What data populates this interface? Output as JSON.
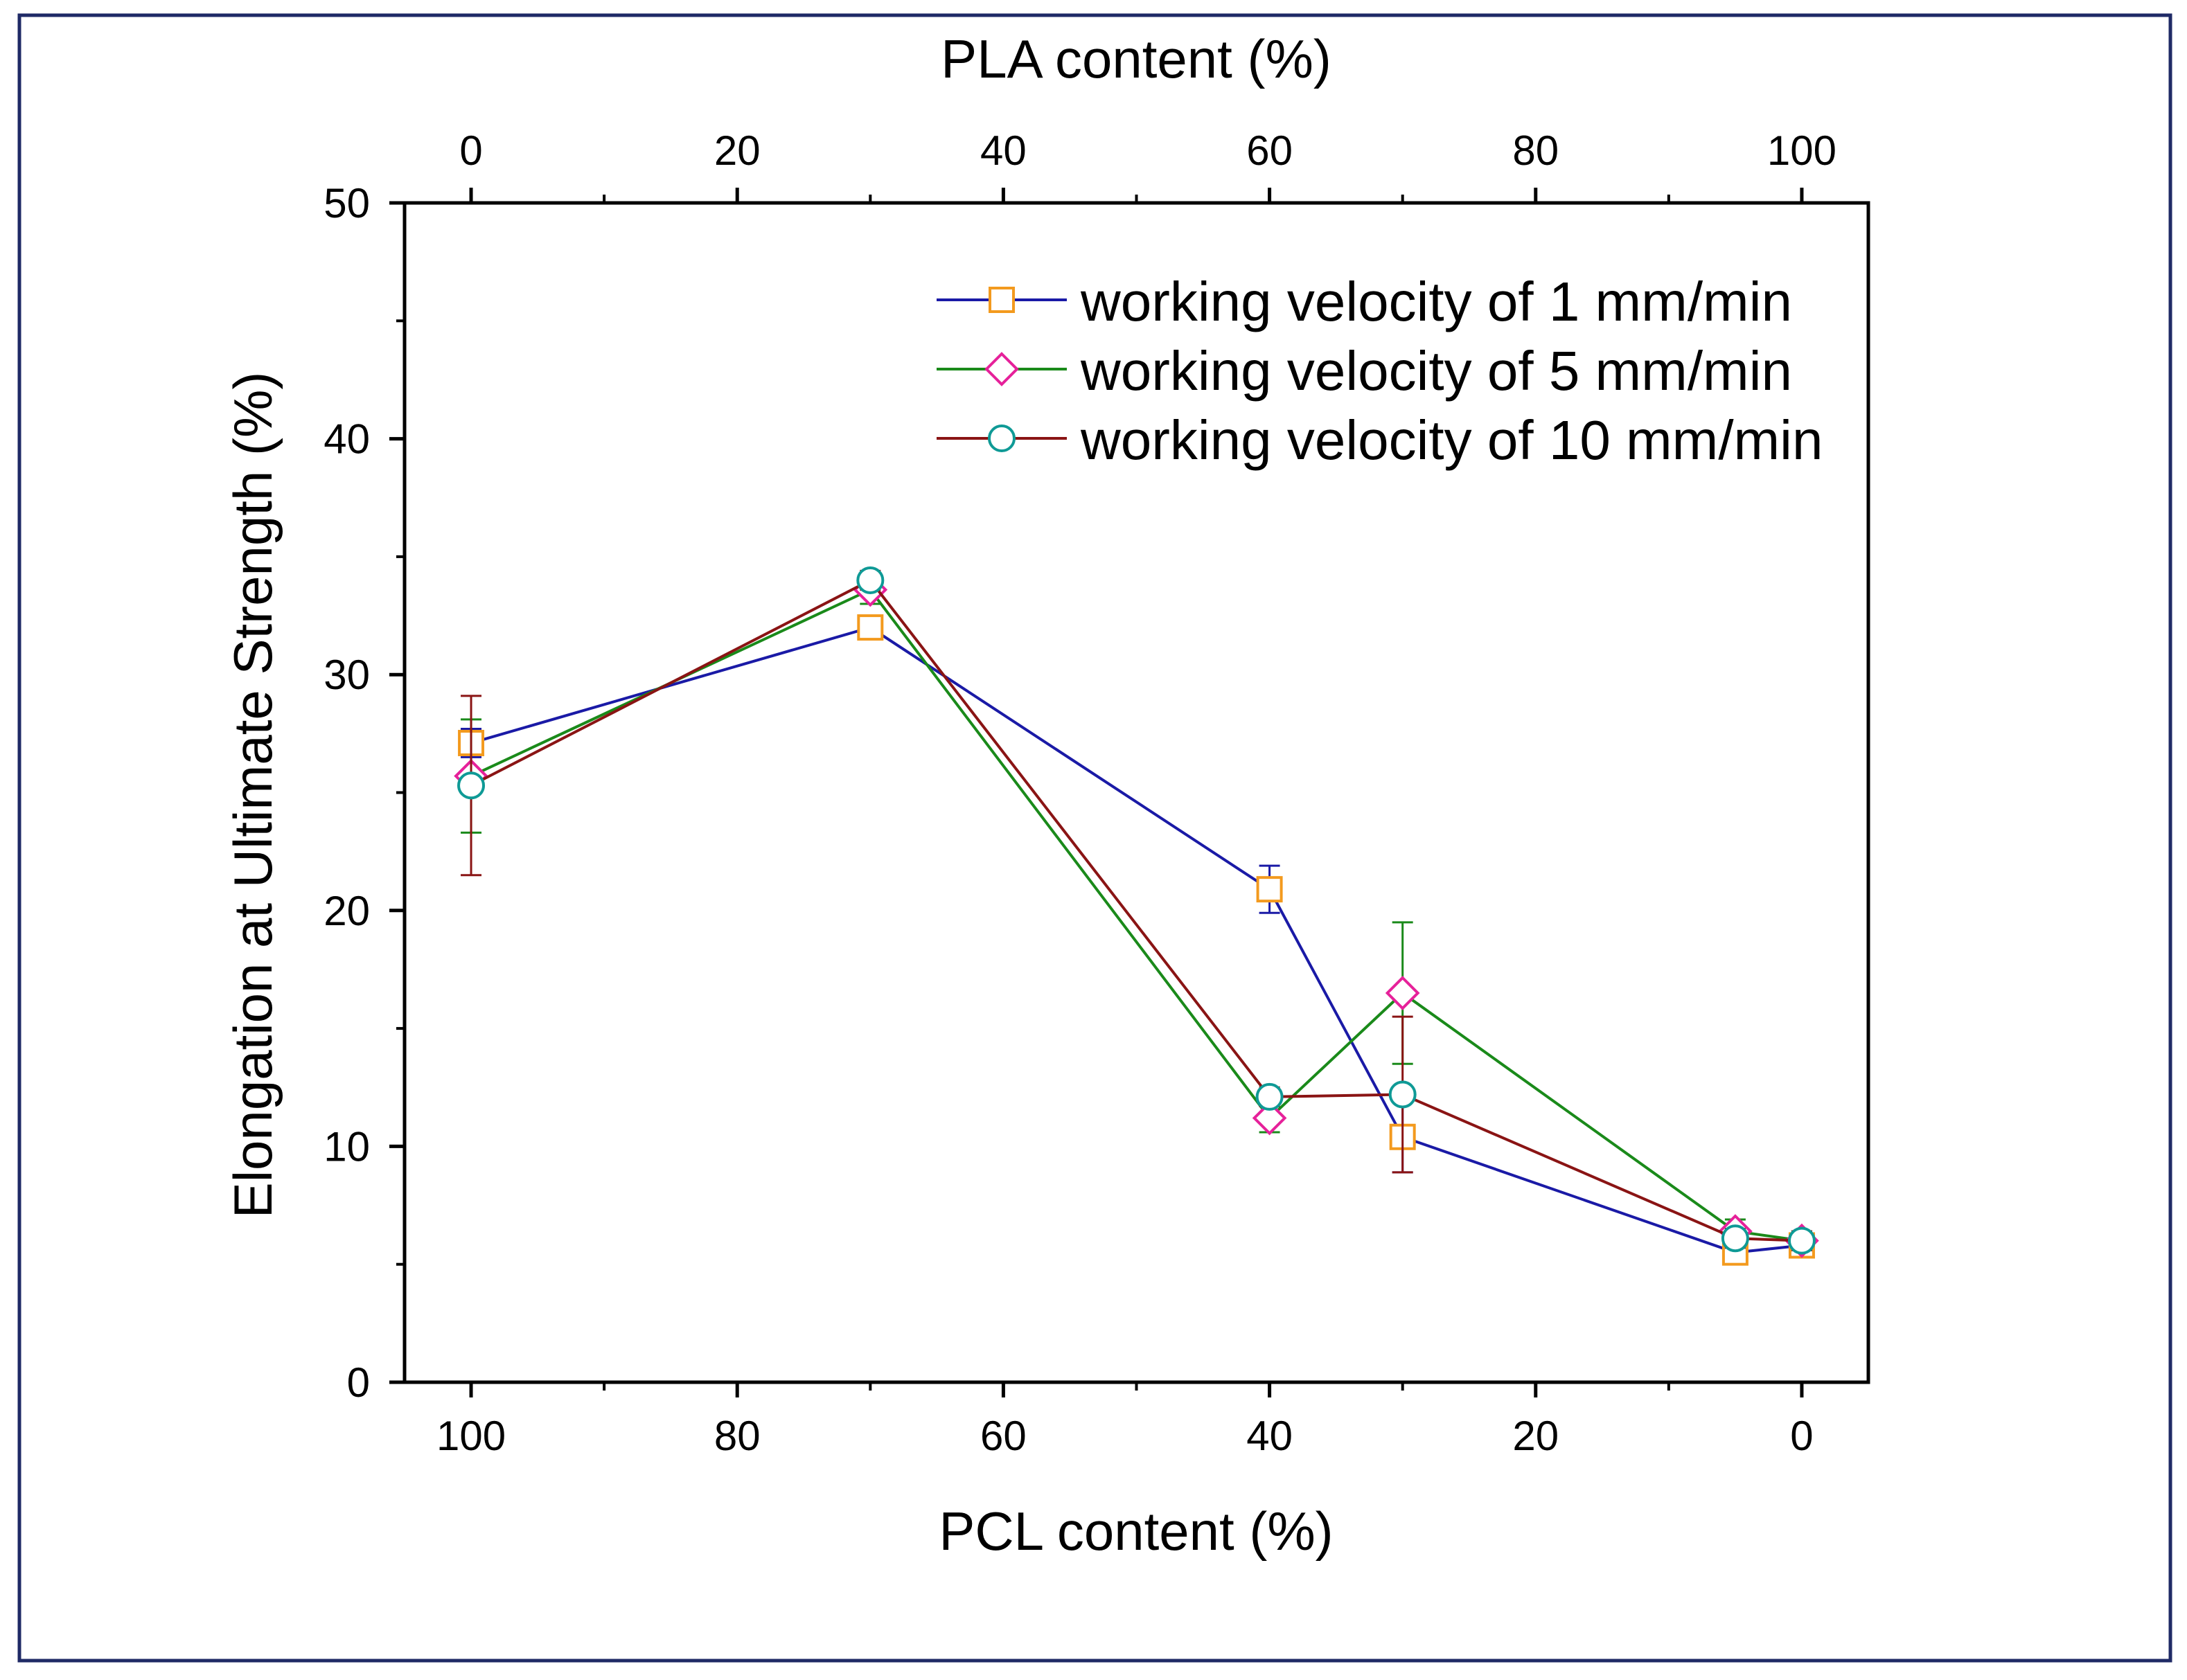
{
  "chart_data": {
    "type": "line",
    "xlabel": "PCL content (%)",
    "x2label": "PLA content (%)",
    "ylabel": "Elongation at Ultimate Strength (%)",
    "xlim": [
      105,
      -5
    ],
    "x2lim": [
      -5,
      105
    ],
    "ylim": [
      0,
      50
    ],
    "x_ticks": [
      100,
      80,
      60,
      40,
      20,
      0
    ],
    "x2_ticks": [
      0,
      20,
      40,
      60,
      80,
      100
    ],
    "y_ticks": [
      0,
      10,
      20,
      30,
      40,
      50
    ],
    "legend_position": "top-right",
    "grid": false,
    "x": [
      100,
      70,
      40,
      30,
      5,
      0
    ],
    "series": [
      {
        "name": "working velocity of 1 mm/min",
        "line_color": "#1a1aa6",
        "marker": "square",
        "marker_color": "#f39a1e",
        "values": [
          27.1,
          32.0,
          20.9,
          10.4,
          5.5,
          5.8
        ],
        "errors": [
          0.6,
          0.4,
          1.0,
          1.5,
          0.4,
          0.3
        ]
      },
      {
        "name": "working velocity of 5 mm/min",
        "line_color": "#1a8a1a",
        "marker": "diamond",
        "marker_color": "#e6219a",
        "values": [
          25.7,
          33.6,
          11.2,
          16.5,
          6.4,
          6.0
        ],
        "errors": [
          2.4,
          0.6,
          0.6,
          3.0,
          0.5,
          0.4
        ]
      },
      {
        "name": "working velocity of 10 mm/min",
        "line_color": "#8a1414",
        "marker": "circle",
        "marker_color": "#0f9a96",
        "values": [
          25.3,
          34.0,
          12.1,
          12.2,
          6.1,
          6.0
        ],
        "errors": [
          3.8,
          0.4,
          0.4,
          3.3,
          0.4,
          0.4
        ]
      }
    ]
  }
}
